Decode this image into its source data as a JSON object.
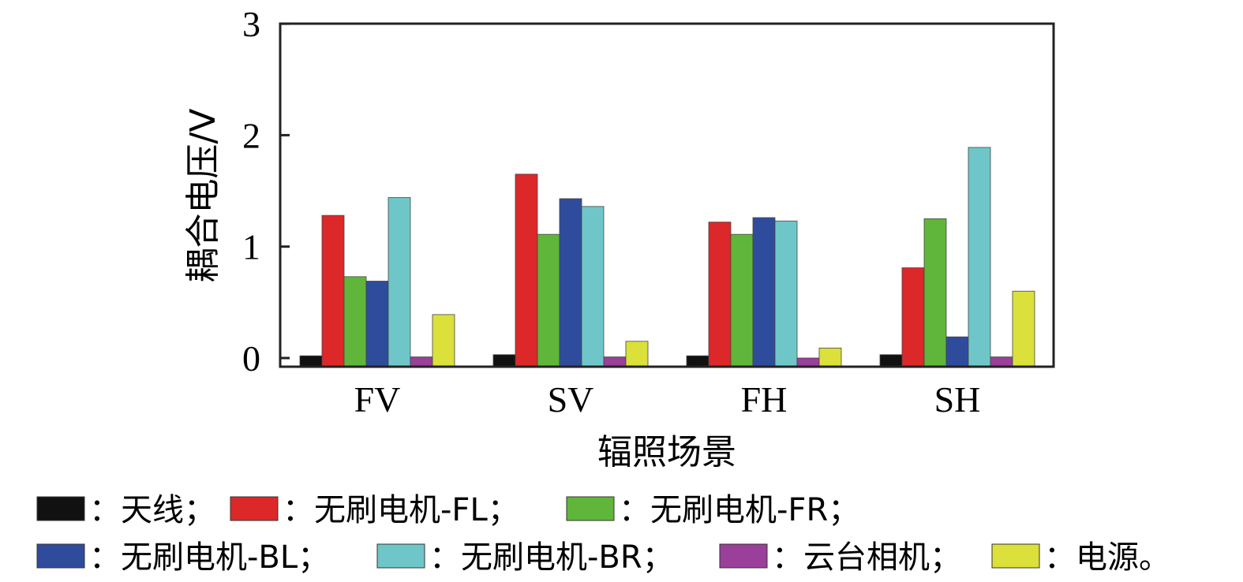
{
  "chart_data": {
    "type": "bar",
    "title": "",
    "xlabel": "辐照场景",
    "ylabel": "耦合电压/V",
    "categories": [
      "FV",
      "SV",
      "FH",
      "SH"
    ],
    "ylim": [
      -0.09,
      3
    ],
    "yticks": [
      "0",
      "1",
      "2",
      "3"
    ],
    "grid": false,
    "legend_placement": "bottom",
    "series": [
      {
        "name": "天线",
        "legend_label": "：天线；",
        "color": "#111111",
        "values": [
          0.02,
          0.03,
          0.02,
          0.03
        ]
      },
      {
        "name": "无刷电机-FL",
        "legend_label": "：无刷电机-FL；",
        "color": "#dc2828",
        "values": [
          1.28,
          1.65,
          1.22,
          0.81
        ]
      },
      {
        "name": "无刷电机-FR",
        "legend_label": "：无刷电机-FR；",
        "color": "#60b63a",
        "values": [
          0.73,
          1.11,
          1.11,
          1.25
        ]
      },
      {
        "name": "无刷电机-BL",
        "legend_label": "：无刷电机-BL；",
        "color": "#2f4c9c",
        "values": [
          0.69,
          1.43,
          1.26,
          0.19
        ]
      },
      {
        "name": "无刷电机-BR",
        "legend_label": "：无刷电机-BR；",
        "color": "#6fc6c8",
        "values": [
          1.44,
          1.36,
          1.23,
          1.89
        ]
      },
      {
        "name": "云台相机",
        "legend_label": "：云台相机；",
        "color": "#9a3f9a",
        "values": [
          0.01,
          0.01,
          0.0,
          0.01
        ]
      },
      {
        "name": "电源",
        "legend_label": "：电源。",
        "color": "#dbe03a",
        "values": [
          0.39,
          0.15,
          0.09,
          0.6
        ]
      }
    ]
  }
}
